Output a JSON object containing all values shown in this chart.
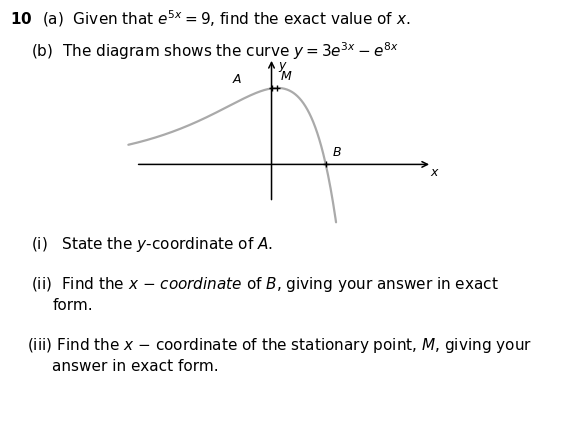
{
  "background_color": "#ffffff",
  "fig_width": 5.61,
  "fig_height": 4.46,
  "dpi": 100,
  "text_color": "#000000",
  "curve_color": "#aaaaaa",
  "curve_lw": 1.6,
  "axes_lw": 1.1,
  "x_range": [
    -0.6,
    0.65
  ],
  "y_range": [
    -1.6,
    2.8
  ]
}
